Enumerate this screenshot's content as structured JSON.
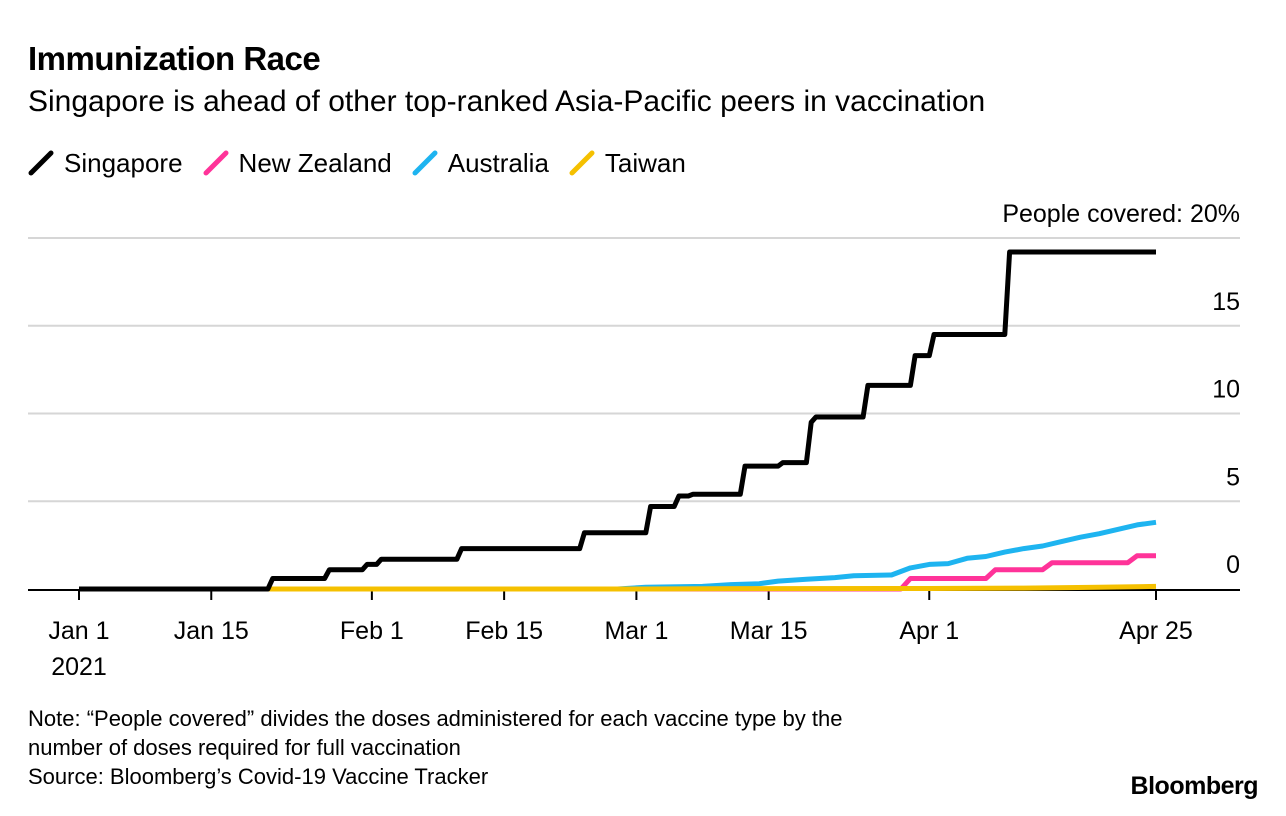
{
  "header": {
    "title": "Immunization Race",
    "subtitle": "Singapore is ahead of other top-ranked Asia-Pacific peers in vaccination"
  },
  "footer": {
    "note_line1": "Note: “People covered” divides the doses administered for each vaccine type by the",
    "note_line2": "number of doses required for full vaccination",
    "source": "Source: Bloomberg’s Covid-19 Vaccine Tracker",
    "brand": "Bloomberg"
  },
  "chart_data": {
    "type": "line",
    "title": "Immunization Race",
    "subtitle": "Singapore is ahead of other top-ranked Asia-Pacific peers in vaccination",
    "ylabel": "People covered",
    "ylim": [
      0,
      20
    ],
    "x_range_days": [
      0,
      114
    ],
    "x_unit": "days since Jan 1 2021",
    "x_ticks": [
      {
        "day": 0,
        "label": "Jan 1",
        "sublabel": "2021"
      },
      {
        "day": 14,
        "label": "Jan 15"
      },
      {
        "day": 31,
        "label": "Feb 1"
      },
      {
        "day": 45,
        "label": "Feb 15"
      },
      {
        "day": 59,
        "label": "Mar 1"
      },
      {
        "day": 73,
        "label": "Mar 15"
      },
      {
        "day": 90,
        "label": "Apr 1"
      },
      {
        "day": 114,
        "label": "Apr 25"
      }
    ],
    "y_ticks": [
      {
        "value": 0,
        "label": "0"
      },
      {
        "value": 5,
        "label": "5"
      },
      {
        "value": 10,
        "label": "10"
      },
      {
        "value": 15,
        "label": "15"
      },
      {
        "value": 20,
        "label": "People covered: 20%"
      }
    ],
    "grid": true,
    "legend_position": "top-left",
    "series": [
      {
        "name": "Singapore",
        "color": "#000000",
        "points": [
          [
            0,
            0
          ],
          [
            20,
            0
          ],
          [
            20.5,
            0.6
          ],
          [
            26,
            0.6
          ],
          [
            26.5,
            1.1
          ],
          [
            30,
            1.1
          ],
          [
            30.5,
            1.4
          ],
          [
            31.5,
            1.4
          ],
          [
            32,
            1.7
          ],
          [
            40,
            1.7
          ],
          [
            40.5,
            2.3
          ],
          [
            53,
            2.3
          ],
          [
            53.5,
            3.2
          ],
          [
            60,
            3.2
          ],
          [
            60.5,
            4.7
          ],
          [
            63,
            4.7
          ],
          [
            63.5,
            5.3
          ],
          [
            64.5,
            5.3
          ],
          [
            65,
            5.4
          ],
          [
            70,
            5.4
          ],
          [
            70.5,
            7
          ],
          [
            74,
            7
          ],
          [
            74.5,
            7.2
          ],
          [
            77,
            7.2
          ],
          [
            77.5,
            9.5
          ],
          [
            78,
            9.8
          ],
          [
            83,
            9.8
          ],
          [
            83.5,
            11.6
          ],
          [
            88,
            11.6
          ],
          [
            88.5,
            13.3
          ],
          [
            90,
            13.3
          ],
          [
            90.5,
            14.5
          ],
          [
            98,
            14.5
          ],
          [
            98.5,
            19.2
          ],
          [
            114,
            19.2
          ]
        ]
      },
      {
        "name": "New Zealand",
        "color": "#ff3399",
        "points": [
          [
            0,
            0
          ],
          [
            87,
            0
          ],
          [
            88,
            0.6
          ],
          [
            96,
            0.6
          ],
          [
            97,
            1.1
          ],
          [
            102,
            1.1
          ],
          [
            103,
            1.5
          ],
          [
            111,
            1.5
          ],
          [
            112,
            1.9
          ],
          [
            114,
            1.9
          ]
        ]
      },
      {
        "name": "Australia",
        "color": "#1eb4f0",
        "points": [
          [
            0,
            0
          ],
          [
            57,
            0
          ],
          [
            60,
            0.1
          ],
          [
            66,
            0.15
          ],
          [
            69,
            0.25
          ],
          [
            72,
            0.3
          ],
          [
            74,
            0.45
          ],
          [
            77,
            0.55
          ],
          [
            80,
            0.65
          ],
          [
            82,
            0.75
          ],
          [
            86,
            0.8
          ],
          [
            88,
            1.2
          ],
          [
            90,
            1.4
          ],
          [
            92,
            1.45
          ],
          [
            94,
            1.75
          ],
          [
            96,
            1.85
          ],
          [
            98,
            2.1
          ],
          [
            100,
            2.3
          ],
          [
            102,
            2.45
          ],
          [
            104,
            2.7
          ],
          [
            106,
            2.95
          ],
          [
            108,
            3.15
          ],
          [
            110,
            3.4
          ],
          [
            112,
            3.65
          ],
          [
            114,
            3.8
          ]
        ]
      },
      {
        "name": "Taiwan",
        "color": "#f5c000",
        "points": [
          [
            0,
            0
          ],
          [
            60,
            0
          ],
          [
            70,
            0.02
          ],
          [
            90,
            0.03
          ],
          [
            100,
            0.05
          ],
          [
            108,
            0.1
          ],
          [
            114,
            0.15
          ]
        ]
      }
    ]
  }
}
